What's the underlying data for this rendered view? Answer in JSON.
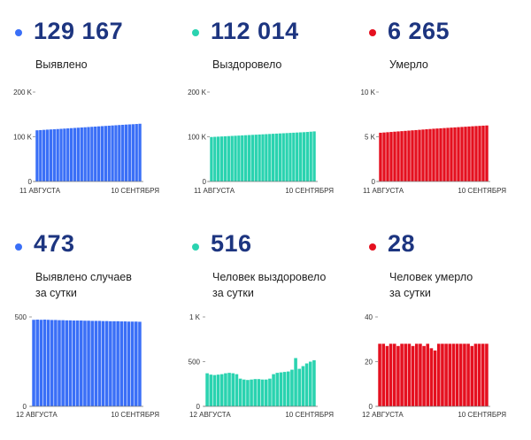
{
  "panels": [
    {
      "big": "129 167",
      "label_lines": [
        "Выявлено"
      ],
      "color": "#3a6ff7",
      "chart_data": {
        "type": "bar",
        "x_start_label": "11 АВГУСТА",
        "x_end_label": "10 СЕНТЯБРЯ",
        "ylim": [
          0,
          200000
        ],
        "yticks": [
          0,
          100000,
          200000
        ],
        "ytick_labels": [
          "0",
          "100 K",
          "200 K"
        ],
        "n": 31,
        "values": [
          114500,
          115000,
          115500,
          116000,
          116400,
          116800,
          117300,
          117800,
          118300,
          118800,
          119300,
          119800,
          120300,
          120800,
          121300,
          121800,
          122300,
          122800,
          123300,
          123800,
          124300,
          124800,
          125300,
          125800,
          126300,
          126800,
          127300,
          127700,
          128100,
          128600,
          129167
        ]
      }
    },
    {
      "big": "112 014",
      "label_lines": [
        "Выздоровело"
      ],
      "color": "#2ad3b0",
      "chart_data": {
        "type": "bar",
        "x_start_label": "11 АВГУСТА",
        "x_end_label": "10 СЕНТЯБРЯ",
        "ylim": [
          0,
          200000
        ],
        "yticks": [
          0,
          100000,
          200000
        ],
        "ytick_labels": [
          "0",
          "100 K",
          "200 K"
        ],
        "n": 31,
        "values": [
          99500,
          99900,
          100300,
          100700,
          101100,
          101500,
          101900,
          102300,
          102700,
          103100,
          103500,
          103900,
          104300,
          104700,
          105100,
          105500,
          105900,
          106300,
          106700,
          107100,
          107500,
          107900,
          108300,
          108700,
          109100,
          109500,
          109900,
          110300,
          110800,
          111400,
          112014
        ]
      }
    },
    {
      "big": "6 265",
      "label_lines": [
        "Умерло"
      ],
      "color": "#e5101f",
      "chart_data": {
        "type": "bar",
        "x_start_label": "11 АВГУСТА",
        "x_end_label": "10 СЕНТЯБРЯ",
        "ylim": [
          0,
          10000
        ],
        "yticks": [
          0,
          5000,
          10000
        ],
        "ytick_labels": [
          "0",
          "5 K",
          "10 K"
        ],
        "n": 31,
        "values": [
          5450,
          5480,
          5510,
          5540,
          5570,
          5600,
          5630,
          5660,
          5690,
          5720,
          5750,
          5780,
          5810,
          5840,
          5870,
          5900,
          5925,
          5950,
          5975,
          6000,
          6025,
          6050,
          6075,
          6100,
          6125,
          6150,
          6175,
          6200,
          6220,
          6245,
          6265
        ]
      }
    },
    {
      "big": "473",
      "label_lines": [
        "Выявлено случаев",
        "за сутки"
      ],
      "color": "#3a6ff7",
      "chart_data": {
        "type": "bar",
        "x_start_label": "12 АВГУСТА",
        "x_end_label": "10 СЕНТЯБРЯ",
        "ylim": [
          0,
          500
        ],
        "yticks": [
          0,
          500
        ],
        "ytick_labels": [
          "0",
          "500"
        ],
        "n": 30,
        "values": [
          484,
          485,
          484,
          485,
          484,
          483,
          483,
          482,
          482,
          481,
          481,
          480,
          480,
          480,
          479,
          479,
          478,
          478,
          478,
          477,
          477,
          476,
          476,
          476,
          475,
          475,
          474,
          474,
          474,
          473
        ]
      }
    },
    {
      "big": "516",
      "label_lines": [
        "Человек выздоровело",
        "за сутки"
      ],
      "color": "#2ad3b0",
      "chart_data": {
        "type": "bar",
        "x_start_label": "12 АВГУСТА",
        "x_end_label": "10 СЕНТЯБРЯ",
        "ylim": [
          0,
          1000
        ],
        "yticks": [
          0,
          500,
          1000
        ],
        "ytick_labels": [
          "0",
          "500",
          "1 K"
        ],
        "n": 30,
        "values": [
          370,
          355,
          350,
          355,
          360,
          370,
          375,
          370,
          360,
          310,
          300,
          295,
          300,
          305,
          305,
          300,
          300,
          310,
          360,
          375,
          380,
          385,
          390,
          410,
          540,
          420,
          450,
          480,
          500,
          516
        ]
      }
    },
    {
      "big": "28",
      "label_lines": [
        "Человек умерло",
        "за сутки"
      ],
      "color": "#e5101f",
      "chart_data": {
        "type": "bar",
        "x_start_label": "12 АВГУСТА",
        "x_end_label": "10 СЕНТЯБРЯ",
        "ylim": [
          0,
          40
        ],
        "yticks": [
          0,
          20,
          40
        ],
        "ytick_labels": [
          "0",
          "20",
          "40"
        ],
        "n": 30,
        "values": [
          28,
          28,
          27,
          28,
          28,
          27,
          28,
          28,
          28,
          27,
          28,
          28,
          27,
          28,
          26,
          25,
          28,
          28,
          28,
          28,
          28,
          28,
          28,
          28,
          28,
          27,
          28,
          28,
          28,
          28
        ]
      }
    }
  ]
}
